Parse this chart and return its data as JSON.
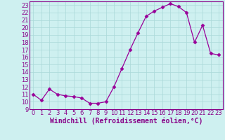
{
  "x": [
    0,
    1,
    2,
    3,
    4,
    5,
    6,
    7,
    8,
    9,
    10,
    11,
    12,
    13,
    14,
    15,
    16,
    17,
    18,
    19,
    20,
    21,
    22,
    23
  ],
  "y": [
    11.0,
    10.2,
    11.7,
    11.0,
    10.8,
    10.7,
    10.5,
    9.8,
    9.8,
    10.0,
    12.0,
    14.5,
    17.0,
    19.3,
    21.5,
    22.2,
    22.7,
    23.2,
    22.8,
    22.0,
    18.0,
    20.3,
    16.5,
    16.3
  ],
  "line_color": "#990099",
  "marker": "D",
  "marker_size": 2.5,
  "bg_color": "#cef0f0",
  "grid_color": "#aad8d8",
  "xlabel": "Windchill (Refroidissement éolien,°C)",
  "ylim": [
    9,
    23.5
  ],
  "xlim": [
    -0.5,
    23.5
  ],
  "yticks": [
    9,
    10,
    11,
    12,
    13,
    14,
    15,
    16,
    17,
    18,
    19,
    20,
    21,
    22,
    23
  ],
  "xticks": [
    0,
    1,
    2,
    3,
    4,
    5,
    6,
    7,
    8,
    9,
    10,
    11,
    12,
    13,
    14,
    15,
    16,
    17,
    18,
    19,
    20,
    21,
    22,
    23
  ],
  "xlabel_fontsize": 7.0,
  "tick_fontsize": 6.0,
  "axis_color": "#880088",
  "border_color": "#880088"
}
